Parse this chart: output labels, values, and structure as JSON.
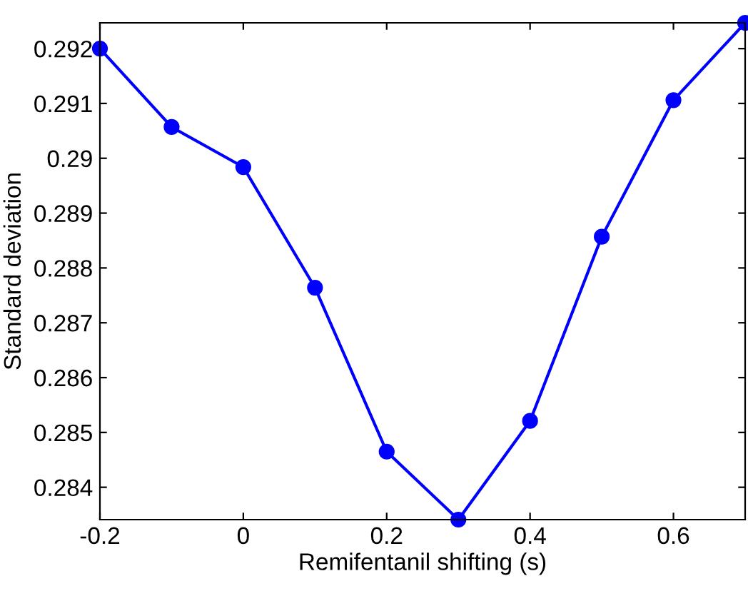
{
  "chart_data": {
    "type": "line",
    "xlabel": "Remifentanil shifting (s)",
    "ylabel": "Standard deviation",
    "x": [
      -0.2,
      -0.1,
      0,
      0.1,
      0.2,
      0.3,
      0.4,
      0.5,
      0.6,
      0.7
    ],
    "series": [
      {
        "color": "#0000ff",
        "values": [
          0.292,
          0.29057,
          0.28984,
          0.28764,
          0.28465,
          0.28341,
          0.28521,
          0.28857,
          0.29106,
          0.29247
        ]
      }
    ],
    "xlim": [
      -0.2,
      0.7
    ],
    "ylim": [
      0.28341,
      0.29247
    ],
    "xticks": [
      -0.2,
      0,
      0.2,
      0.4,
      0.6
    ],
    "yticks": [
      0.284,
      0.285,
      0.286,
      0.287,
      0.288,
      0.289,
      0.29,
      0.291,
      0.292
    ],
    "marker": "circle",
    "line_style": "solid",
    "grid": false,
    "legend": false
  }
}
